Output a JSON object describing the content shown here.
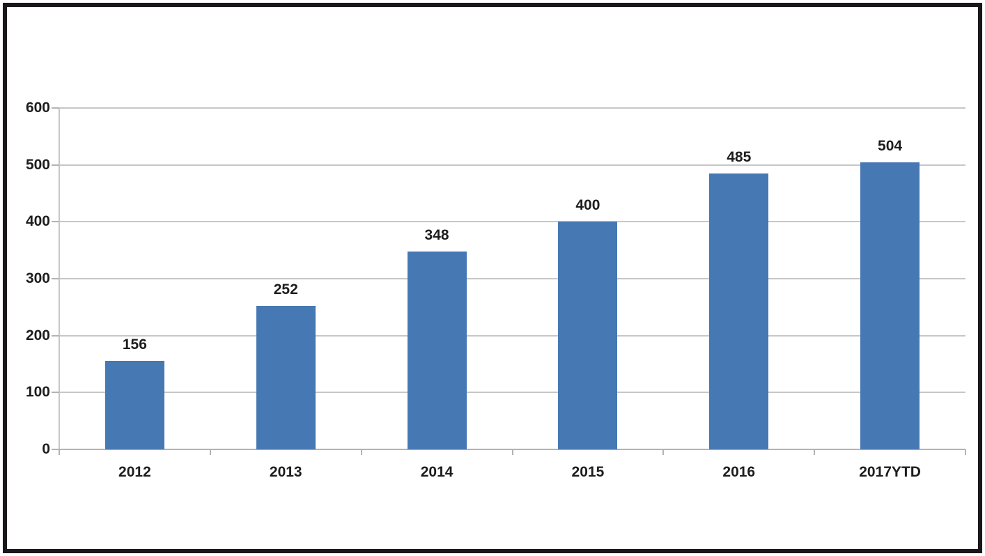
{
  "chart_data": {
    "type": "bar",
    "title": "",
    "xlabel": "",
    "ylabel": "",
    "categories": [
      "2012",
      "2013",
      "2014",
      "2015",
      "2016",
      "2017YTD"
    ],
    "values": [
      156,
      252,
      348,
      400,
      485,
      504
    ],
    "ylim": [
      0,
      600
    ],
    "ytick_interval": 100,
    "ytick_labels": [
      "0",
      "100",
      "200",
      "300",
      "400",
      "500",
      "600"
    ],
    "grid": true,
    "legend": false,
    "data_labels_shown": true,
    "colors": {
      "bar": "#4678b4",
      "gridline": "#c9c6c6",
      "axis": "#b5b2b2",
      "label": "#1d1d1d",
      "frame_border": "#1a171b",
      "background": "#ffffff"
    }
  }
}
